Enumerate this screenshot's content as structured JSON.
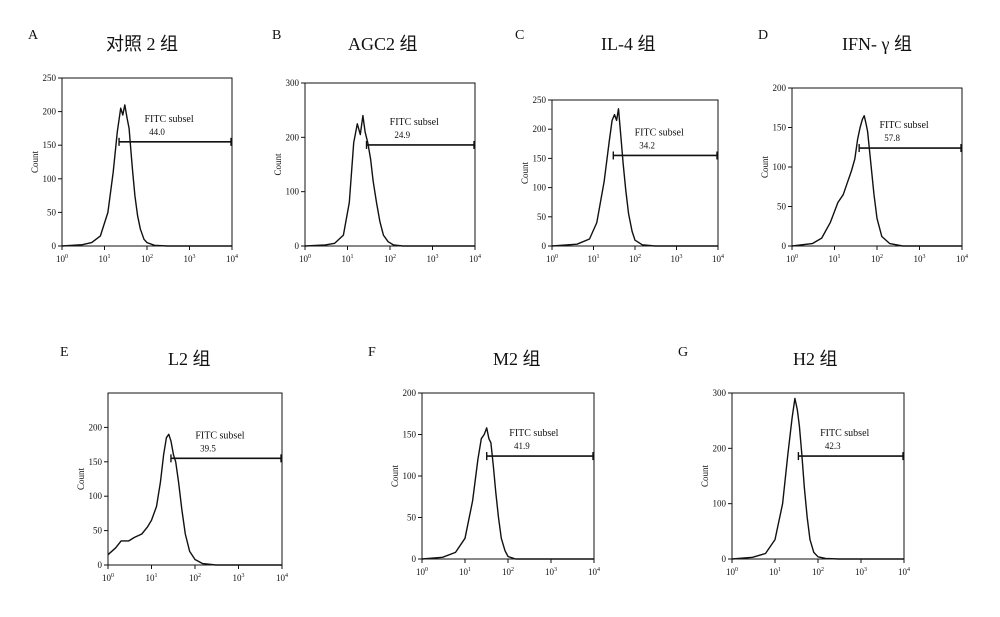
{
  "figure": {
    "panels": [
      {
        "letter": "A",
        "title": "对照 2 组",
        "gate_label": "FITC subsel",
        "gate_value": "44.0"
      },
      {
        "letter": "B",
        "title": "AGC2 组",
        "gate_label": "FITC subsel",
        "gate_value": "24.9"
      },
      {
        "letter": "C",
        "title": "IL-4 组",
        "gate_label": "FITC subsel",
        "gate_value": "34.2"
      },
      {
        "letter": "D",
        "title": "IFN- γ 组",
        "gate_label": "FITC subsel",
        "gate_value": "57.8"
      },
      {
        "letter": "E",
        "title": "L2 组",
        "gate_label": "FITC subsel",
        "gate_value": "39.5"
      },
      {
        "letter": "F",
        "title": "M2 组",
        "gate_label": "FITC subsel",
        "gate_value": "41.9"
      },
      {
        "letter": "G",
        "title": "H2 组",
        "gate_label": "FITC subsel",
        "gate_value": "42.3"
      }
    ]
  },
  "chart_data": [
    {
      "type": "line",
      "panel": "A",
      "title": "对照 2 组",
      "ylabel": "Count",
      "x_scale": "log",
      "xlim": [
        1,
        10000
      ],
      "ylim": [
        0,
        250
      ],
      "x_ticks": [
        "0",
        "1",
        "2",
        "3",
        "4"
      ],
      "y_ticks": [
        0,
        50,
        100,
        150,
        200,
        250
      ],
      "x": [
        1,
        3,
        5,
        8,
        12,
        16,
        20,
        24,
        27,
        30,
        34,
        38,
        42,
        46,
        52,
        60,
        70,
        85,
        100,
        150,
        300,
        10000
      ],
      "y": [
        0,
        2,
        5,
        15,
        50,
        110,
        170,
        205,
        195,
        210,
        190,
        175,
        140,
        110,
        75,
        45,
        25,
        10,
        5,
        1,
        0,
        0
      ],
      "gate": {
        "from": 22,
        "to": 10000,
        "label": "FITC subsel",
        "value": "44.0"
      }
    },
    {
      "type": "line",
      "panel": "B",
      "title": "AGC2 组",
      "ylabel": "Count",
      "x_scale": "log",
      "xlim": [
        1,
        10000
      ],
      "ylim": [
        0,
        300
      ],
      "x_ticks": [
        "0",
        "1",
        "2",
        "3",
        "4"
      ],
      "y_ticks": [
        0,
        100,
        200,
        300
      ],
      "x": [
        1,
        3,
        5,
        8,
        11,
        14,
        17,
        20,
        23,
        26,
        30,
        35,
        40,
        48,
        58,
        70,
        90,
        120,
        200,
        10000
      ],
      "y": [
        0,
        2,
        5,
        20,
        80,
        190,
        225,
        205,
        240,
        210,
        190,
        160,
        120,
        80,
        45,
        20,
        8,
        2,
        0,
        0
      ],
      "gate": {
        "from": 28,
        "to": 10000,
        "label": "FITC subsel",
        "value": "24.9"
      }
    },
    {
      "type": "line",
      "panel": "C",
      "title": "IL-4 组",
      "ylabel": "Count",
      "x_scale": "log",
      "xlim": [
        1,
        10000
      ],
      "ylim": [
        0,
        250
      ],
      "x_ticks": [
        "0",
        "1",
        "2",
        "3",
        "4"
      ],
      "y_ticks": [
        0,
        50,
        100,
        150,
        200,
        250
      ],
      "x": [
        1,
        4,
        8,
        12,
        18,
        24,
        28,
        32,
        36,
        40,
        46,
        52,
        60,
        70,
        85,
        100,
        150,
        300,
        10000
      ],
      "y": [
        0,
        3,
        12,
        40,
        110,
        180,
        215,
        225,
        215,
        235,
        185,
        140,
        95,
        55,
        25,
        10,
        2,
        0,
        0
      ],
      "gate": {
        "from": 30,
        "to": 10000,
        "label": "FITC subsel",
        "value": "34.2"
      }
    },
    {
      "type": "line",
      "panel": "D",
      "title": "IFN- γ 组",
      "ylabel": "Count",
      "x_scale": "log",
      "xlim": [
        1,
        10000
      ],
      "ylim": [
        0,
        200
      ],
      "x_ticks": [
        "0",
        "1",
        "2",
        "3",
        "4"
      ],
      "y_ticks": [
        0,
        50,
        100,
        150,
        200
      ],
      "x": [
        1,
        3,
        5,
        8,
        12,
        16,
        20,
        25,
        30,
        35,
        40,
        45,
        50,
        55,
        60,
        70,
        85,
        100,
        130,
        200,
        400,
        10000
      ],
      "y": [
        0,
        3,
        10,
        30,
        55,
        65,
        80,
        95,
        110,
        135,
        150,
        160,
        165,
        155,
        145,
        110,
        65,
        35,
        12,
        3,
        0,
        0
      ],
      "gate": {
        "from": 38,
        "to": 10000,
        "label": "FITC subsel",
        "value": "57.8"
      }
    },
    {
      "type": "line",
      "panel": "E",
      "title": "L2 组",
      "ylabel": "Count",
      "x_scale": "log",
      "xlim": [
        1,
        10000
      ],
      "ylim": [
        0,
        250
      ],
      "x_ticks": [
        "0",
        "1",
        "2",
        "3",
        "4"
      ],
      "y_ticks": [
        0,
        50,
        100,
        150,
        200
      ],
      "x": [
        1,
        1.5,
        2,
        3,
        4,
        6,
        8,
        10,
        13,
        16,
        19,
        22,
        25,
        28,
        32,
        36,
        42,
        50,
        60,
        75,
        100,
        150,
        300,
        10000
      ],
      "y": [
        15,
        25,
        35,
        35,
        40,
        45,
        55,
        65,
        85,
        120,
        160,
        185,
        190,
        180,
        160,
        150,
        120,
        80,
        45,
        20,
        8,
        2,
        0,
        0
      ],
      "gate": {
        "from": 28,
        "to": 10000,
        "label": "FITC subsel",
        "value": "39.5"
      }
    },
    {
      "type": "line",
      "panel": "F",
      "title": "M2 组",
      "ylabel": "Count",
      "x_scale": "log",
      "xlim": [
        1,
        10000
      ],
      "ylim": [
        0,
        200
      ],
      "x_ticks": [
        "0",
        "1",
        "2",
        "3",
        "4"
      ],
      "y_ticks": [
        0,
        50,
        100,
        150,
        200
      ],
      "x": [
        1,
        3,
        6,
        10,
        15,
        20,
        24,
        28,
        32,
        36,
        40,
        46,
        52,
        60,
        70,
        85,
        100,
        150,
        300,
        10000
      ],
      "y": [
        0,
        2,
        8,
        25,
        70,
        120,
        145,
        150,
        158,
        145,
        140,
        110,
        80,
        50,
        25,
        10,
        3,
        0,
        0,
        0
      ],
      "gate": {
        "from": 32,
        "to": 10000,
        "label": "FITC subsel",
        "value": "41.9"
      }
    },
    {
      "type": "line",
      "panel": "G",
      "title": "H2 组",
      "ylabel": "Count",
      "x_scale": "log",
      "xlim": [
        1,
        10000
      ],
      "ylim": [
        0,
        300
      ],
      "x_ticks": [
        "0",
        "1",
        "2",
        "3",
        "4"
      ],
      "y_ticks": [
        0,
        100,
        200,
        300
      ],
      "x": [
        1,
        3,
        6,
        10,
        15,
        20,
        25,
        29,
        33,
        37,
        42,
        48,
        56,
        65,
        80,
        100,
        150,
        300,
        10000
      ],
      "y": [
        0,
        3,
        10,
        35,
        100,
        190,
        255,
        290,
        270,
        240,
        190,
        130,
        75,
        35,
        12,
        4,
        1,
        0,
        0
      ],
      "gate": {
        "from": 35,
        "to": 10000,
        "label": "FITC subsel",
        "value": "42.3"
      }
    }
  ]
}
